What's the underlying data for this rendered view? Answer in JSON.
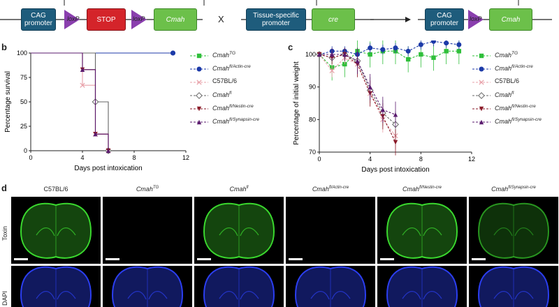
{
  "panel_a": {
    "boxes": {
      "cag1": "CAG promoter",
      "stop": "STOP",
      "gene1": "Cmah",
      "tissue": "Tissue-specific promoter",
      "cre": "cre",
      "cag2": "CAG promoter",
      "gene2": "Cmah"
    },
    "loxp": "loxP",
    "cross": "X",
    "colors": {
      "promoter": "#1e5c7c",
      "stop": "#d4242a",
      "gene": "#6cc04a",
      "loxp": "#8a3fae"
    }
  },
  "panel_letters": {
    "b": "b",
    "c": "c",
    "d": "d"
  },
  "legend": [
    {
      "base": "Cmah",
      "sup": "TG",
      "italic": true,
      "color": "#2fbf3a",
      "marker": "square"
    },
    {
      "base": "Cmah",
      "sup": "fl/Actin-cre",
      "italic": true,
      "color": "#1c3aa8",
      "marker": "circle"
    },
    {
      "base": "C57BL/6",
      "sup": "",
      "italic": false,
      "color": "#e8a0a8",
      "marker": "x"
    },
    {
      "base": "Cmah",
      "sup": "fl",
      "italic": true,
      "color": "#666666",
      "marker": "diamond"
    },
    {
      "base": "Cmah",
      "sup": "fl/Nestin-cre",
      "italic": true,
      "color": "#8a1a28",
      "marker": "tri-down"
    },
    {
      "base": "Cmah",
      "sup": "fl/Synapsin-cre",
      "italic": true,
      "color": "#5a1a6e",
      "marker": "tri-up"
    }
  ],
  "chart_data": [
    {
      "type": "line",
      "panel": "b",
      "xlabel": "Days post intoxication",
      "ylabel": "Percentage survival",
      "xlim": [
        0,
        12
      ],
      "ylim": [
        0,
        100
      ],
      "xticks": [
        "0",
        "4",
        "8",
        "12"
      ],
      "yticks": [
        "0",
        "25",
        "50",
        "75",
        "100"
      ],
      "series": [
        {
          "name": "CmahTG",
          "x": [
            0,
            11
          ],
          "y": [
            100,
            100
          ]
        },
        {
          "name": "Cmahfl/Actin-cre",
          "x": [
            0,
            11
          ],
          "y": [
            100,
            100
          ]
        },
        {
          "name": "C57BL/6",
          "x": [
            0,
            4,
            5,
            6
          ],
          "y": [
            100,
            67,
            17,
            0
          ]
        },
        {
          "name": "Cmahfl",
          "x": [
            0,
            5,
            6
          ],
          "y": [
            100,
            50,
            0
          ]
        },
        {
          "name": "Cmahfl/Nestin-cre",
          "x": [
            0,
            4,
            5,
            6
          ],
          "y": [
            100,
            83,
            17,
            0
          ]
        },
        {
          "name": "Cmahfl/Synapsin-cre",
          "x": [
            0,
            4,
            5,
            6
          ],
          "y": [
            100,
            83,
            17,
            0
          ]
        }
      ]
    },
    {
      "type": "line",
      "panel": "c",
      "xlabel": "Days post intoxication",
      "ylabel": "Percentage of initial weight",
      "xlim": [
        0,
        12
      ],
      "ylim": [
        70,
        100
      ],
      "xticks": [
        "0",
        "4",
        "8",
        "12"
      ],
      "yticks": [
        "70",
        "80",
        "90",
        "100"
      ],
      "series": [
        {
          "name": "CmahTG",
          "x": [
            0,
            1,
            2,
            3,
            4,
            5,
            6,
            7,
            8,
            9,
            10,
            11
          ],
          "y": [
            100,
            96,
            97,
            101,
            100,
            101,
            101,
            98.5,
            100,
            99,
            101,
            101
          ]
        },
        {
          "name": "Cmahfl/Actin-cre",
          "x": [
            0,
            1,
            2,
            3,
            4,
            5,
            6,
            7,
            8,
            9,
            10,
            11
          ],
          "y": [
            100,
            101,
            101,
            100,
            102,
            101.5,
            102,
            101,
            103,
            104,
            103.5,
            103
          ]
        },
        {
          "name": "C57BL/6",
          "x": [
            0,
            1,
            2,
            3,
            4,
            5,
            6
          ],
          "y": [
            100,
            95,
            99,
            97,
            88,
            80,
            75
          ]
        },
        {
          "name": "Cmahfl",
          "x": [
            0,
            1,
            2,
            3,
            4,
            5,
            6
          ],
          "y": [
            100,
            99,
            100,
            98,
            89,
            82,
            78.5
          ]
        },
        {
          "name": "Cmahfl/Nestin-cre",
          "x": [
            0,
            1,
            2,
            3,
            4,
            5,
            6
          ],
          "y": [
            100,
            99,
            100,
            97,
            88,
            81,
            73
          ]
        },
        {
          "name": "Cmahfl/Synapsin-cre",
          "x": [
            0,
            1,
            2,
            3,
            4,
            5,
            6
          ],
          "y": [
            100,
            100,
            100,
            98,
            90,
            83,
            81.5
          ]
        }
      ]
    }
  ],
  "panel_d": {
    "columns": [
      {
        "base": "C57BL/6",
        "sup": "",
        "italic": false,
        "toxin": "strong"
      },
      {
        "base": "Cmah",
        "sup": "TG",
        "italic": true,
        "toxin": "none"
      },
      {
        "base": "Cmah",
        "sup": "fl",
        "italic": true,
        "toxin": "strong"
      },
      {
        "base": "Cmah",
        "sup": "fl/Actin-cre",
        "italic": true,
        "toxin": "none"
      },
      {
        "base": "Cmah",
        "sup": "fl/Nestin-cre",
        "italic": true,
        "toxin": "strong"
      },
      {
        "base": "Cmah",
        "sup": "fl/Synapsin-cre",
        "italic": true,
        "toxin": "medium"
      }
    ],
    "row_labels": {
      "toxin": "Toxin",
      "dapi": "DAPI"
    }
  }
}
